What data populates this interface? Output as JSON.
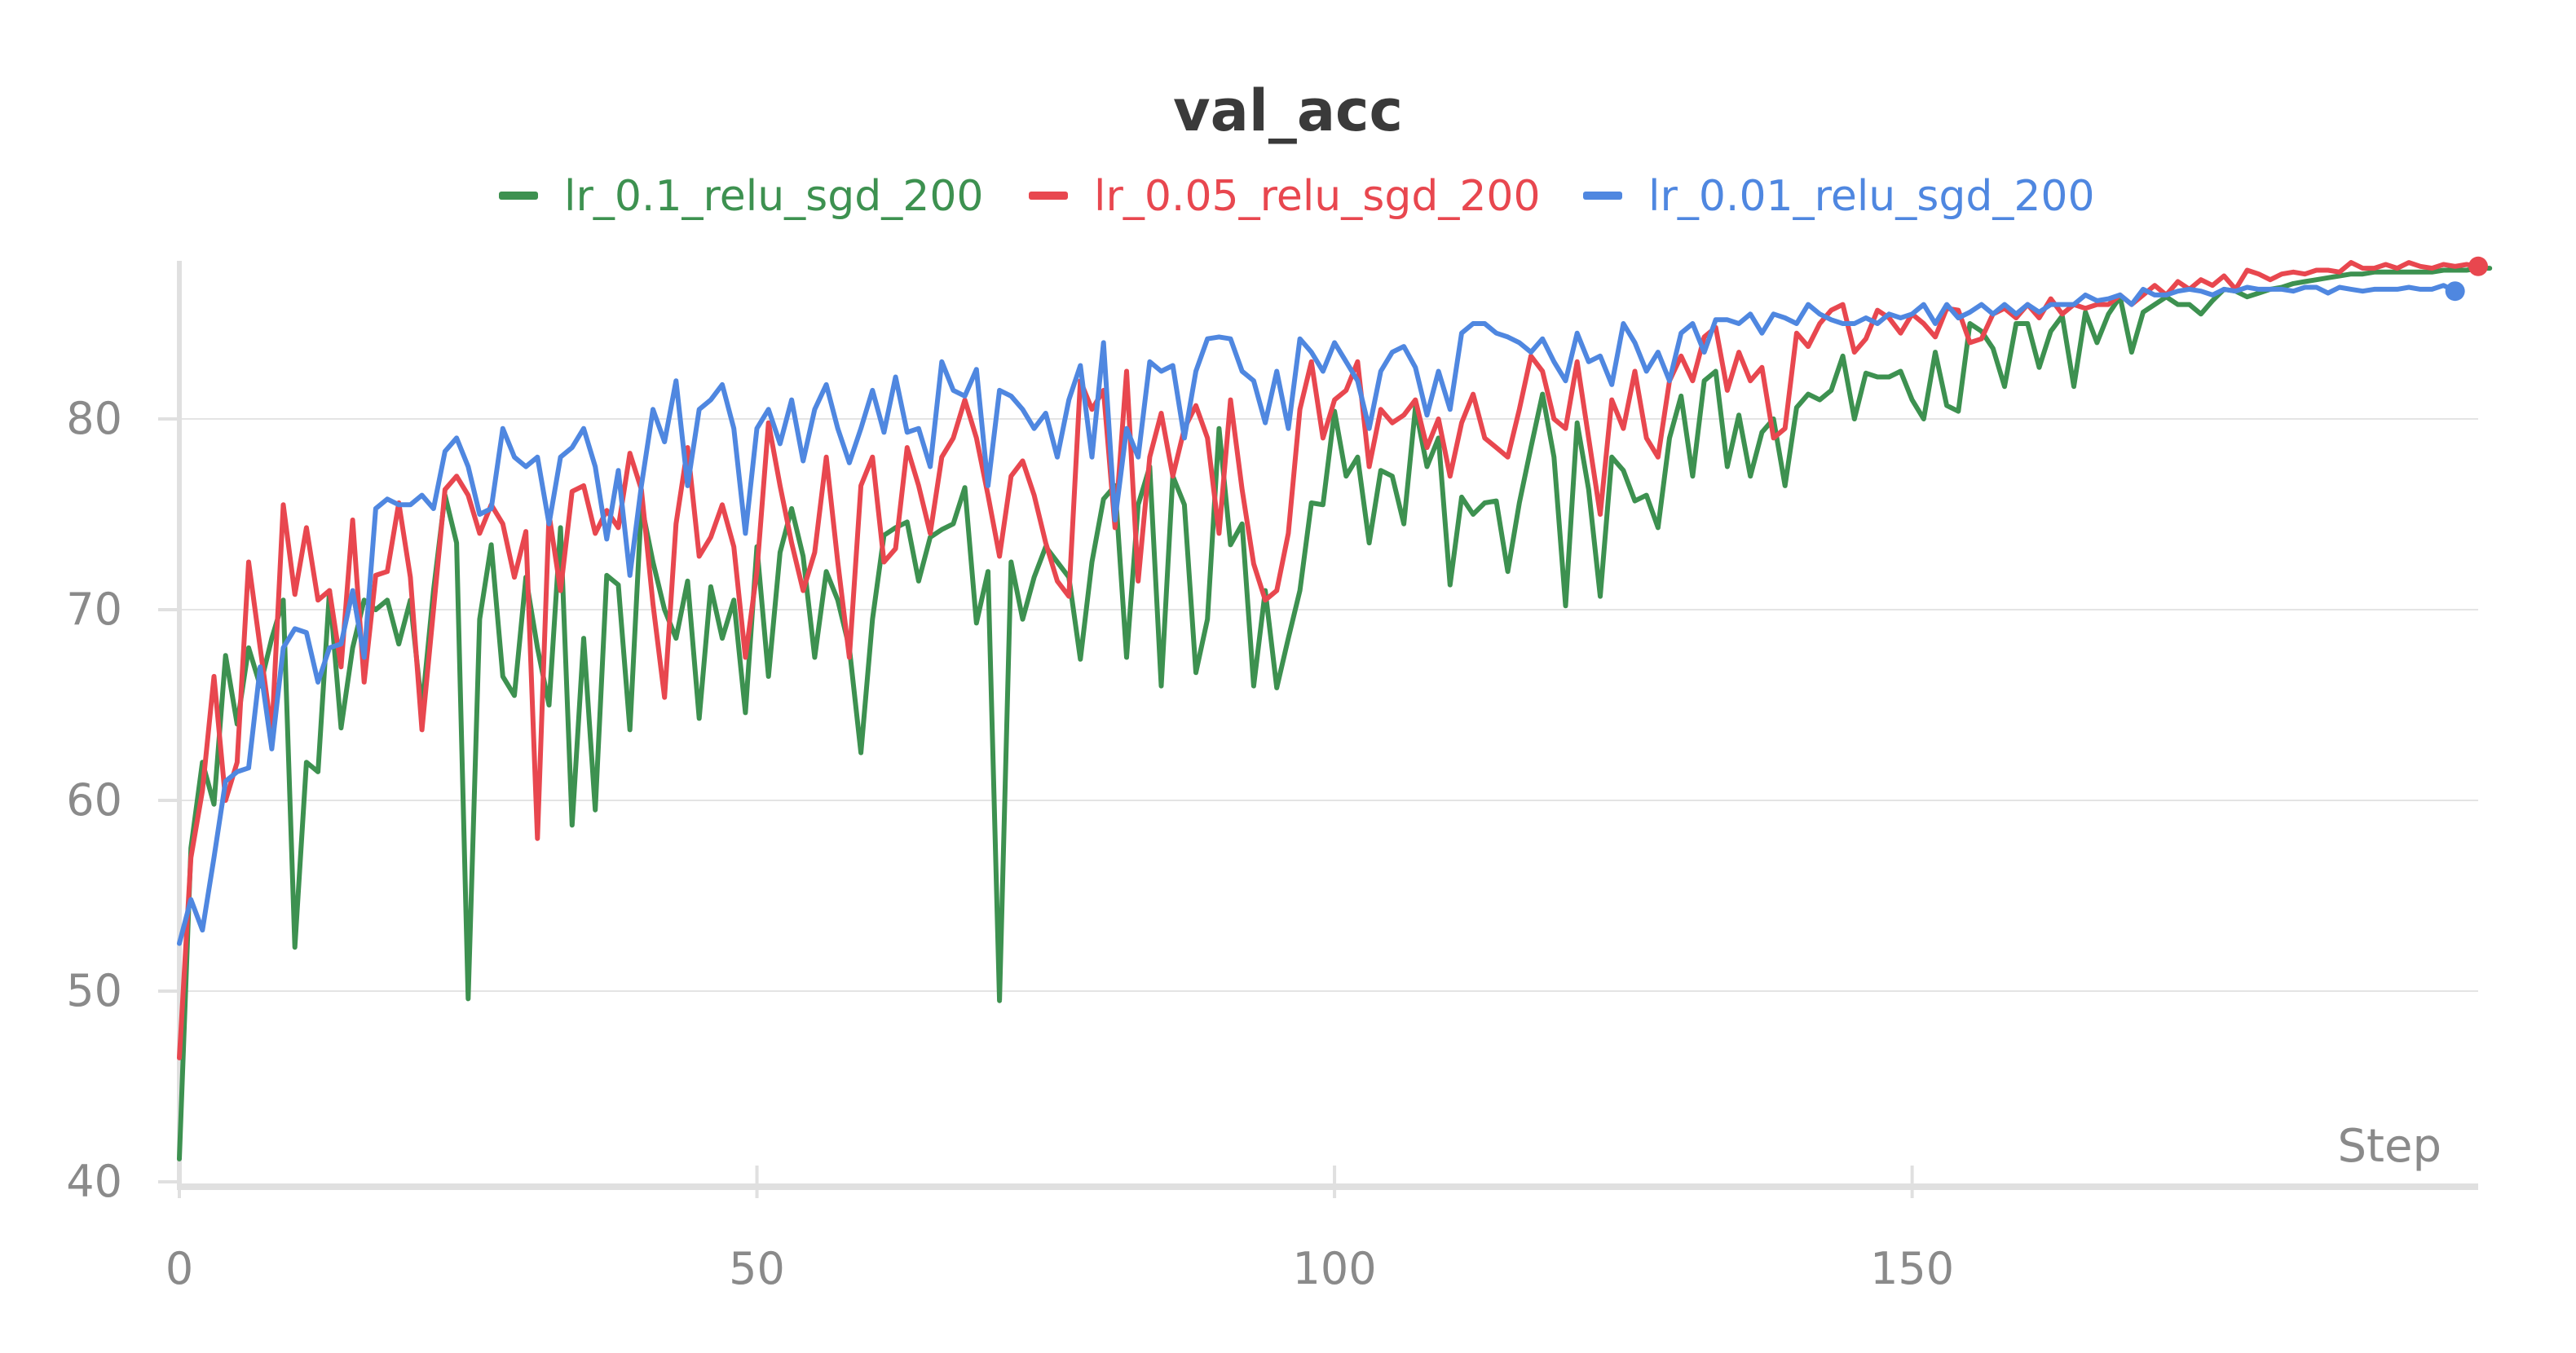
{
  "chart_data": {
    "type": "line",
    "title": "val_acc",
    "xlabel": "Step",
    "ylabel": "",
    "xlim": [
      0,
      199
    ],
    "ylim": [
      40,
      88
    ],
    "x_ticks": [
      0,
      50,
      100,
      150
    ],
    "y_ticks": [
      40,
      50,
      60,
      70,
      80
    ],
    "grid": "horizontal",
    "legend_position": "top-center",
    "series": [
      {
        "name": "lr_0.1_relu_sgd_200",
        "color": "#3d9150",
        "values": [
          41.2,
          57.5,
          62.0,
          59.8,
          67.6,
          64.0,
          68.0,
          66.0,
          68.5,
          70.5,
          52.3,
          62.0,
          61.5,
          71.0,
          63.8,
          68.0,
          70.5,
          70.0,
          70.5,
          68.2,
          70.5,
          64.8,
          71.0,
          76.0,
          73.5,
          49.6,
          69.5,
          73.4,
          66.5,
          65.5,
          71.7,
          68.0,
          65.0,
          74.3,
          58.7,
          68.5,
          59.5,
          71.8,
          71.3,
          63.7,
          75.5,
          72.5,
          70.0,
          68.5,
          71.5,
          64.3,
          71.2,
          68.5,
          70.5,
          64.6,
          73.3,
          66.5,
          73.0,
          75.3,
          72.8,
          67.5,
          72.0,
          70.5,
          68.0,
          62.5,
          69.5,
          73.9,
          74.3,
          74.6,
          71.5,
          73.8,
          74.2,
          74.5,
          76.4,
          69.3,
          72.0,
          49.5,
          72.5,
          69.5,
          71.7,
          73.3,
          72.5,
          71.7,
          67.4,
          72.5,
          75.8,
          76.5,
          67.5,
          75.5,
          77.5,
          66.0,
          77.0,
          75.5,
          66.7,
          69.5,
          79.5,
          73.4,
          74.5,
          66.0,
          71.0,
          65.9,
          68.5,
          71.0,
          75.6,
          75.5,
          80.4,
          77.0,
          78.0,
          73.5,
          77.3,
          77.0,
          74.5,
          80.6,
          77.5,
          79.0,
          71.3,
          75.9,
          75.0,
          75.6,
          75.7,
          72.0,
          75.6,
          78.5,
          81.3,
          78.0,
          70.2,
          79.8,
          76.3,
          70.7,
          78.0,
          77.3,
          75.7,
          76.0,
          74.3,
          79.0,
          81.2,
          77.0,
          82.0,
          82.5,
          77.5,
          80.2,
          77.0,
          79.3,
          80.0,
          76.5,
          80.6,
          81.3,
          81.0,
          81.5,
          83.3,
          80.0,
          82.4,
          82.2,
          82.2,
          82.5,
          81.0,
          80.0,
          83.5,
          80.7,
          80.4,
          85.0,
          84.6,
          83.7,
          81.7,
          85.0,
          85.0,
          82.7,
          84.6,
          85.4,
          81.7,
          85.6,
          84.0,
          85.5,
          86.4,
          83.5,
          85.6,
          86.0,
          86.4,
          86.0,
          86.0,
          85.5,
          86.2,
          86.8,
          86.7,
          86.4,
          86.6,
          86.8,
          86.9,
          87.1,
          87.2,
          87.3,
          87.4,
          87.5,
          87.6,
          87.6,
          87.7,
          87.7,
          87.7,
          87.7,
          87.7,
          87.7,
          87.8,
          87.8,
          87.8,
          87.9,
          87.9
        ]
      },
      {
        "name": "lr_0.05_relu_sgd_200",
        "color": "#e8474f",
        "values": [
          46.5,
          57.0,
          60.5,
          66.5,
          60.0,
          62.0,
          72.5,
          68.0,
          63.5,
          75.5,
          70.8,
          74.3,
          70.5,
          71.0,
          67.0,
          74.7,
          66.2,
          71.8,
          72.0,
          75.6,
          71.7,
          63.7,
          70.0,
          76.3,
          77.0,
          76.0,
          74.0,
          75.5,
          74.5,
          71.7,
          74.1,
          58.0,
          75.0,
          71.0,
          76.2,
          76.5,
          74.0,
          75.2,
          74.3,
          78.2,
          76.3,
          70.3,
          65.4,
          74.5,
          78.5,
          72.8,
          73.8,
          75.5,
          73.3,
          67.5,
          72.0,
          79.8,
          76.5,
          73.5,
          71.0,
          73.0,
          78.0,
          72.5,
          67.5,
          76.5,
          78.0,
          72.5,
          73.2,
          78.5,
          76.5,
          74.0,
          78.0,
          79.0,
          81.0,
          79.0,
          76.0,
          72.8,
          77.0,
          77.8,
          76.0,
          73.5,
          71.5,
          70.7,
          82.0,
          80.5,
          81.5,
          74.3,
          82.5,
          71.5,
          78.0,
          80.3,
          77.0,
          79.5,
          80.7,
          79.0,
          74.0,
          81.0,
          76.3,
          72.4,
          70.5,
          71.0,
          74.0,
          80.5,
          83.0,
          79.0,
          81.0,
          81.5,
          83.0,
          77.5,
          80.5,
          79.8,
          80.2,
          81.0,
          78.5,
          80.0,
          77.0,
          79.8,
          81.3,
          79.0,
          78.5,
          78.0,
          80.5,
          83.3,
          82.5,
          80.0,
          79.5,
          83.0,
          79.0,
          75.0,
          81.0,
          79.5,
          82.5,
          79.0,
          78.0,
          82.0,
          83.3,
          82.0,
          84.3,
          84.8,
          81.5,
          83.5,
          82.0,
          82.7,
          79.0,
          79.5,
          84.5,
          83.8,
          85.0,
          85.7,
          86.0,
          83.5,
          84.2,
          85.7,
          85.3,
          84.5,
          85.5,
          85.0,
          84.3,
          85.8,
          85.7,
          84.0,
          84.2,
          85.5,
          85.8,
          85.3,
          86.0,
          85.3,
          86.3,
          85.5,
          86.0,
          85.8,
          86.0,
          86.0,
          86.5,
          86.0,
          86.5,
          87.0,
          86.5,
          87.2,
          86.8,
          87.3,
          87.0,
          87.5,
          86.8,
          87.8,
          87.6,
          87.3,
          87.6,
          87.7,
          87.6,
          87.8,
          87.8,
          87.7,
          88.2,
          87.9,
          87.9,
          88.1,
          87.9,
          88.2,
          88.0,
          87.9,
          88.1,
          88.0,
          88.1,
          88.0
        ]
      },
      {
        "name": "lr_0.01_relu_sgd_200",
        "color": "#4f87e0",
        "values": [
          52.5,
          54.8,
          53.2,
          57.0,
          61.0,
          61.5,
          61.7,
          67.0,
          62.7,
          68.0,
          69.0,
          68.8,
          66.2,
          68.0,
          68.2,
          71.0,
          67.5,
          75.3,
          75.8,
          75.5,
          75.5,
          76.0,
          75.3,
          78.3,
          79.0,
          77.5,
          75.0,
          75.3,
          79.5,
          78.0,
          77.5,
          78.0,
          74.5,
          78.0,
          78.5,
          79.5,
          77.5,
          73.7,
          77.3,
          71.8,
          76.5,
          80.5,
          78.8,
          82.0,
          76.5,
          80.5,
          81.0,
          81.8,
          79.5,
          74.0,
          79.5,
          80.5,
          78.7,
          81.0,
          77.8,
          80.5,
          81.8,
          79.5,
          77.7,
          79.5,
          81.5,
          79.3,
          82.2,
          79.3,
          79.5,
          77.5,
          83.0,
          81.5,
          81.2,
          82.6,
          76.5,
          81.5,
          81.2,
          80.5,
          79.5,
          80.3,
          78.0,
          81.0,
          82.8,
          78.0,
          84.0,
          74.7,
          79.5,
          78.0,
          83.0,
          82.5,
          82.8,
          79.0,
          82.5,
          84.2,
          84.3,
          84.2,
          82.5,
          82.0,
          79.8,
          82.5,
          79.5,
          84.2,
          83.5,
          82.5,
          84.0,
          83.0,
          82.0,
          79.5,
          82.5,
          83.5,
          83.8,
          82.7,
          80.2,
          82.5,
          80.5,
          84.5,
          85.0,
          85.0,
          84.5,
          84.3,
          84.0,
          83.5,
          84.2,
          83.0,
          82.0,
          84.5,
          83.0,
          83.3,
          81.8,
          85.0,
          84.0,
          82.5,
          83.5,
          82.0,
          84.5,
          85.0,
          83.5,
          85.2,
          85.2,
          85.0,
          85.5,
          84.5,
          85.5,
          85.3,
          85.0,
          86.0,
          85.5,
          85.2,
          85.0,
          85.0,
          85.3,
          85.0,
          85.5,
          85.3,
          85.5,
          86.0,
          85.0,
          86.0,
          85.3,
          85.6,
          86.0,
          85.5,
          86.0,
          85.5,
          86.0,
          85.6,
          86.0,
          86.0,
          86.0,
          86.5,
          86.2,
          86.3,
          86.5,
          86.0,
          86.8,
          86.5,
          86.5,
          86.7,
          86.8,
          86.7,
          86.5,
          86.8,
          86.7,
          86.9,
          86.8,
          86.8,
          86.8,
          86.7,
          86.9,
          86.9,
          86.6,
          86.9,
          86.8,
          86.7,
          86.8,
          86.8,
          86.8,
          86.9,
          86.8,
          86.8,
          87.0,
          86.7
        ]
      }
    ]
  }
}
